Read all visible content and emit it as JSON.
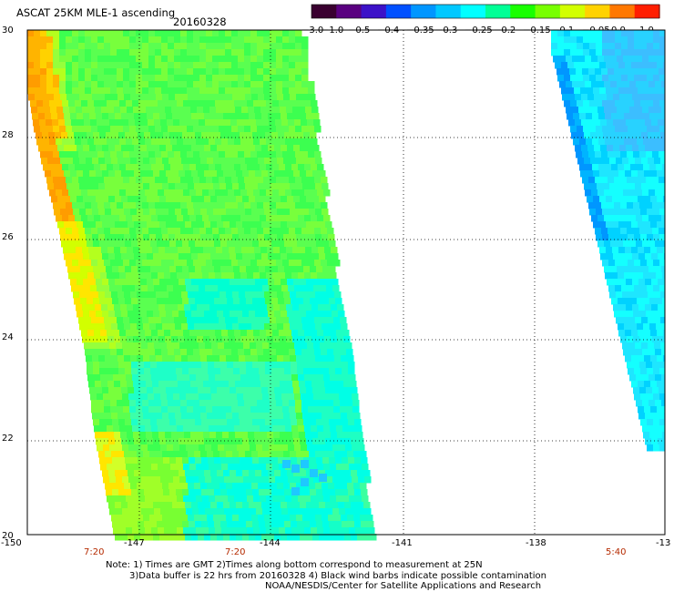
{
  "title": "ASCAT 25KM MLE-1 ascending",
  "date": "20160328",
  "colorbar": {
    "ticks": [
      "-3.0",
      "-1.0",
      "-0.5",
      "-0.4",
      "-0.35",
      "-0.3",
      "-0.25",
      "-0.2",
      "-0.15",
      "-0.1",
      "-0.05",
      "0.0",
      "1.0"
    ],
    "colors": [
      "#3a0030",
      "#5a0080",
      "#3c12c8",
      "#0050ff",
      "#0096ff",
      "#00c8ff",
      "#00ffff",
      "#00ff96",
      "#19ff00",
      "#78ff00",
      "#d2ff00",
      "#ffd200",
      "#ff7800",
      "#ff1e00"
    ]
  },
  "axes": {
    "lat_labels": [
      "30",
      "28",
      "26",
      "24",
      "22",
      "20"
    ],
    "lon_labels": [
      "-150",
      "-147",
      "-144",
      "-141",
      "-138",
      "-13"
    ],
    "lat_range": [
      20,
      30
    ],
    "lon_range": [
      -150,
      -135
    ]
  },
  "pass_times": [
    "7:20",
    "7:20",
    "5:40"
  ],
  "notes": {
    "line1": "Note: 1) Times are GMT 2)Times along bottom correspond to measurement at 25N",
    "line2": "3)Data buffer is 22 hrs from 20160328 4) Black wind barbs indicate possible contamination",
    "line3": "NOAA/NESDIS/Center for Satellite Applications and Research"
  },
  "swaths": [
    {
      "name": "west-swath",
      "description": "green MLE values with orange-yellow western edge"
    },
    {
      "name": "east-swath",
      "description": "cyan to light-blue MLE values"
    }
  ]
}
